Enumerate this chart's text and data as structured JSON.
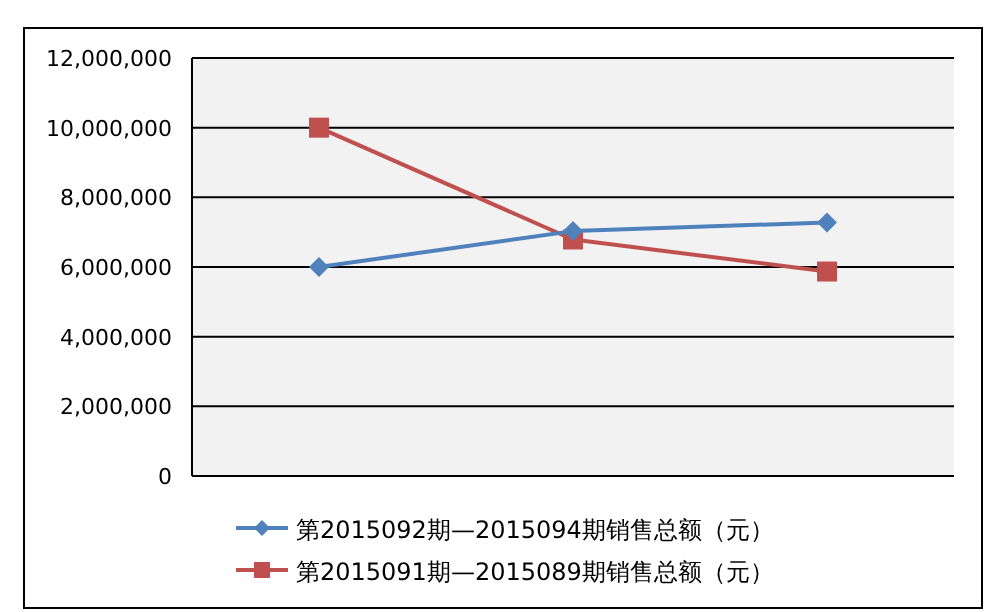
{
  "chart_data": {
    "type": "line",
    "categories": [
      null,
      null,
      null
    ],
    "series": [
      {
        "name": "第2015092期—2015094期销售总额（元）",
        "color": "#4f81bd",
        "marker": "diamond",
        "values": [
          6000000,
          7030000,
          7280000
        ]
      },
      {
        "name": "第2015091期—2015089期销售总额（元）",
        "color": "#c0504d",
        "marker": "square",
        "values": [
          10000000,
          6790000,
          5870000
        ]
      }
    ],
    "ylim": [
      0,
      12000000
    ],
    "yticks": [
      {
        "value": 0,
        "label": "0"
      },
      {
        "value": 2000000,
        "label": "2,000,000"
      },
      {
        "value": 4000000,
        "label": "4,000,000"
      },
      {
        "value": 6000000,
        "label": "6,000,000"
      },
      {
        "value": 8000000,
        "label": "8,000,000"
      },
      {
        "value": 10000000,
        "label": "10,000,000"
      },
      {
        "value": 12000000,
        "label": "12,000,000"
      }
    ],
    "grid": "y",
    "legend": "bottom"
  }
}
